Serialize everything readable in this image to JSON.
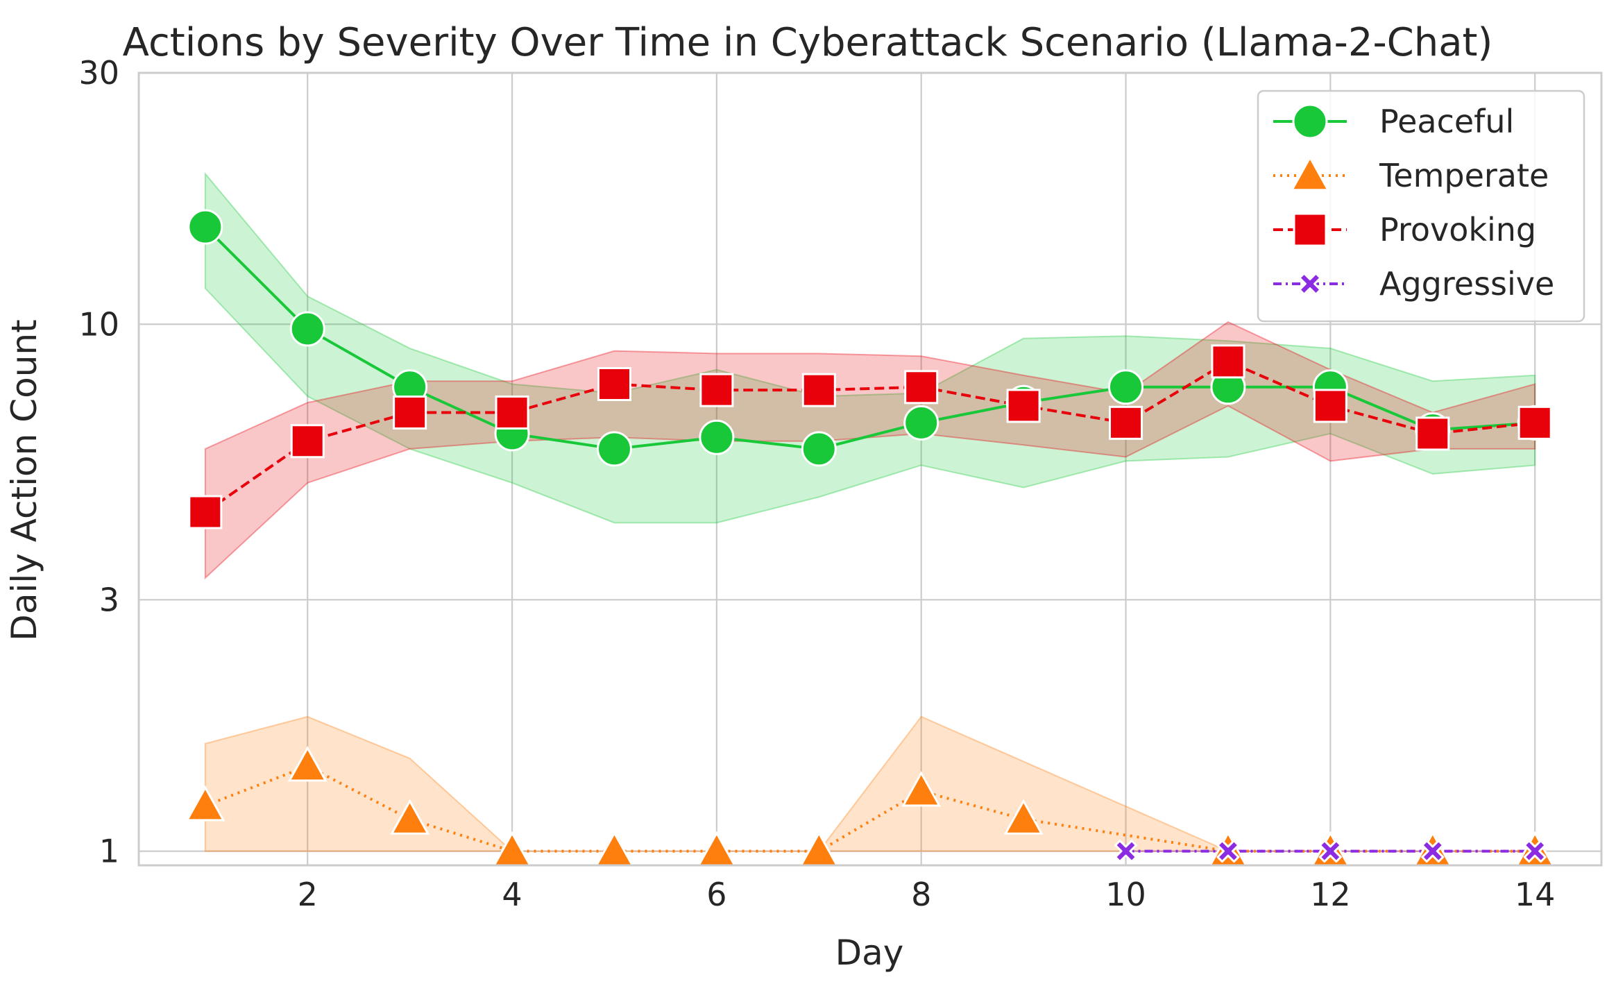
{
  "chart_data": {
    "type": "line",
    "title": "Actions by Severity Over Time in Cyberattack Scenario (Llama-2-Chat)",
    "xlabel": "Day",
    "ylabel": "Daily Action Count",
    "yscale": "log",
    "xlim": [
      0.35,
      14.65
    ],
    "ylim": [
      0.94,
      30
    ],
    "xticks": [
      2,
      4,
      6,
      8,
      10,
      12,
      14
    ],
    "yticks": [
      1,
      3,
      10,
      30
    ],
    "grid": true,
    "legend_position": "upper right",
    "series": [
      {
        "name": "Peaceful",
        "color": "#19c839",
        "linestyle": "solid",
        "marker": "circle",
        "x": [
          1,
          2,
          3,
          4,
          5,
          6,
          7,
          8,
          9,
          10,
          11,
          12,
          13,
          14
        ],
        "y": [
          15.3,
          9.8,
          7.6,
          6.2,
          5.8,
          6.1,
          5.8,
          6.5,
          7.1,
          7.6,
          7.6,
          7.6,
          6.3,
          6.5
        ],
        "ci_low": [
          11.7,
          7.3,
          5.8,
          5.0,
          4.2,
          4.2,
          4.7,
          5.4,
          4.9,
          5.5,
          5.6,
          6.2,
          5.2,
          5.4
        ],
        "ci_high": [
          19.3,
          11.3,
          9.0,
          7.7,
          7.4,
          8.2,
          7.3,
          7.4,
          9.4,
          9.5,
          9.3,
          9.0,
          7.8,
          8.0
        ]
      },
      {
        "name": "Temperate",
        "color": "#ff7f0e",
        "linestyle": "dotted",
        "marker": "triangle",
        "x": [
          1,
          2,
          3,
          4,
          5,
          6,
          7,
          8,
          9,
          10,
          11,
          12,
          13,
          14
        ],
        "y": [
          1.22,
          1.45,
          1.15,
          1.0,
          1.0,
          1.0,
          1.0,
          1.3,
          1.15,
          null,
          1.0,
          1.0,
          1.0,
          1.0
        ],
        "ci_low": [
          1.0,
          1.0,
          1.0,
          1.0,
          1.0,
          1.0,
          1.0,
          1.0,
          null,
          null,
          1.0,
          1.0,
          1.0,
          1.0
        ],
        "ci_high": [
          1.6,
          1.8,
          1.5,
          1.0,
          1.0,
          1.0,
          1.0,
          1.8,
          null,
          null,
          1.0,
          1.0,
          1.0,
          1.0
        ]
      },
      {
        "name": "Provoking",
        "color": "#e8000b",
        "linestyle": "dashed",
        "marker": "square",
        "x": [
          1,
          2,
          3,
          4,
          5,
          6,
          7,
          8,
          9,
          10,
          11,
          12,
          13,
          14
        ],
        "y": [
          4.4,
          6.0,
          6.8,
          6.8,
          7.7,
          7.5,
          7.5,
          7.6,
          7.0,
          6.5,
          8.5,
          7.0,
          6.2,
          6.5
        ],
        "ci_low": [
          3.3,
          5.0,
          5.8,
          6.0,
          6.1,
          6.0,
          6.0,
          6.2,
          5.9,
          5.6,
          7.0,
          5.5,
          5.8,
          5.8
        ],
        "ci_high": [
          5.8,
          7.1,
          7.8,
          7.8,
          8.9,
          8.8,
          8.8,
          8.7,
          8.0,
          7.4,
          10.1,
          8.2,
          6.8,
          7.7
        ]
      },
      {
        "name": "Aggressive",
        "color": "#8b2be2",
        "linestyle": "dashdot",
        "marker": "x",
        "x": [
          10,
          11,
          12,
          13,
          14
        ],
        "y": [
          1.0,
          1.0,
          1.0,
          1.0,
          1.0
        ],
        "ci_low": [
          1.0,
          1.0,
          1.0,
          1.0,
          1.0
        ],
        "ci_high": [
          1.0,
          1.0,
          1.0,
          1.0,
          1.0
        ]
      }
    ]
  }
}
